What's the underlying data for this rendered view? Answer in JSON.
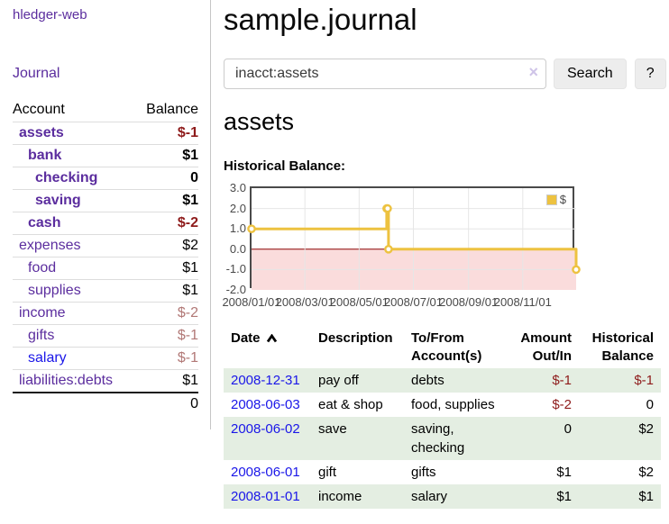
{
  "app": {
    "title": "hledger-web"
  },
  "sidebar": {
    "journal_link": "Journal",
    "table": {
      "account_header": "Account",
      "balance_header": "Balance",
      "rows": [
        {
          "label": "assets",
          "indent": 1,
          "bold": true,
          "balance": "$-1",
          "balance_class": "neg"
        },
        {
          "label": "bank",
          "indent": 2,
          "bold": true,
          "balance": "$1",
          "balance_class": "pos"
        },
        {
          "label": "checking",
          "indent": 3,
          "bold": true,
          "balance": "0",
          "balance_class": "pos"
        },
        {
          "label": "saving",
          "indent": 3,
          "bold": true,
          "balance": "$1",
          "balance_class": "pos"
        },
        {
          "label": "cash",
          "indent": 2,
          "bold": true,
          "balance": "$-2",
          "balance_class": "neg"
        },
        {
          "label": "expenses",
          "indent": 1,
          "bold": false,
          "balance": "$2",
          "balance_class": "pos"
        },
        {
          "label": "food",
          "indent": 2,
          "bold": false,
          "balance": "$1",
          "balance_class": "pos"
        },
        {
          "label": "supplies",
          "indent": 2,
          "bold": false,
          "balance": "$1",
          "balance_class": "pos"
        },
        {
          "label": "income",
          "indent": 1,
          "bold": false,
          "balance": "$-2",
          "balance_class": "neg-dim"
        },
        {
          "label": "gifts",
          "indent": 2,
          "bold": false,
          "balance": "$-1",
          "balance_class": "neg-dim"
        },
        {
          "label": "salary",
          "indent": 2,
          "bold": false,
          "link_style": "blue",
          "balance": "$-1",
          "balance_class": "neg-dim"
        },
        {
          "label": "liabilities:debts",
          "indent": 1,
          "bold": false,
          "balance": "$1",
          "balance_class": "pos"
        }
      ],
      "total": "0"
    }
  },
  "header": {
    "title": "sample.journal"
  },
  "search": {
    "value": "inacct:assets",
    "clear_icon": "×",
    "search_button": "Search",
    "help_button": "?"
  },
  "account_page": {
    "title": "assets",
    "chart_label": "Historical Balance:"
  },
  "chart_data": {
    "type": "line",
    "title": "Historical Balance",
    "legend_label": "$",
    "legend_position": "top-right",
    "xlim": [
      "2008-01-01",
      "2008-12-31"
    ],
    "ylim": [
      -2,
      3
    ],
    "grid": true,
    "grid_color": "#e6e6e6",
    "zero_line_color": "#8b0000",
    "negative_region_color": "#fadcdc",
    "y_ticks": [
      {
        "value": 3,
        "label": "3.0"
      },
      {
        "value": 2,
        "label": "2.0"
      },
      {
        "value": 1,
        "label": "1.0"
      },
      {
        "value": 0,
        "label": "0.0"
      },
      {
        "value": -1,
        "label": "-1.0"
      },
      {
        "value": -2,
        "label": "-2.0"
      }
    ],
    "x_ticks": [
      {
        "date": "2008-01-01",
        "label": "2008/01/01"
      },
      {
        "date": "2008-03-01",
        "label": "2008/03/01"
      },
      {
        "date": "2008-05-01",
        "label": "2008/05/01"
      },
      {
        "date": "2008-07-01",
        "label": "2008/07/01"
      },
      {
        "date": "2008-09-01",
        "label": "2008/09/01"
      },
      {
        "date": "2008-11-01",
        "label": "2008/11/01"
      }
    ],
    "series": [
      {
        "name": "$",
        "color": "#EDC240",
        "step": true,
        "points": [
          {
            "date": "2008-01-01",
            "value": 1
          },
          {
            "date": "2008-06-01",
            "value": 2
          },
          {
            "date": "2008-06-02",
            "value": 2
          },
          {
            "date": "2008-06-03",
            "value": 0
          },
          {
            "date": "2008-12-31",
            "value": -1
          }
        ]
      }
    ]
  },
  "register": {
    "columns": [
      {
        "line1": "Date",
        "line2": "",
        "align": "left",
        "sorted": "asc",
        "sort_icon": "caret-up"
      },
      {
        "line1": "Description",
        "line2": "",
        "align": "left"
      },
      {
        "line1": "To/From",
        "line2": "Account(s)",
        "align": "left"
      },
      {
        "line1": "Amount",
        "line2": "Out/In",
        "align": "right"
      },
      {
        "line1": "Historical",
        "line2": "Balance",
        "align": "right"
      }
    ],
    "rows": [
      {
        "date": "2008-12-31",
        "description": "pay off",
        "accounts": "debts",
        "amount": "$-1",
        "amount_class": "neg",
        "balance": "$-1",
        "balance_class": "neg"
      },
      {
        "date": "2008-06-03",
        "description": "eat & shop",
        "accounts": "food, supplies",
        "amount": "$-2",
        "amount_class": "neg",
        "balance": "0",
        "balance_class": "pos"
      },
      {
        "date": "2008-06-02",
        "description": "save",
        "accounts": "saving, checking",
        "amount": "0",
        "amount_class": "pos",
        "balance": "$2",
        "balance_class": "pos"
      },
      {
        "date": "2008-06-01",
        "description": "gift",
        "accounts": "gifts",
        "amount": "$1",
        "amount_class": "pos",
        "balance": "$2",
        "balance_class": "pos"
      },
      {
        "date": "2008-01-01",
        "description": "income",
        "accounts": "salary",
        "amount": "$1",
        "amount_class": "pos",
        "balance": "$1",
        "balance_class": "pos"
      }
    ]
  }
}
